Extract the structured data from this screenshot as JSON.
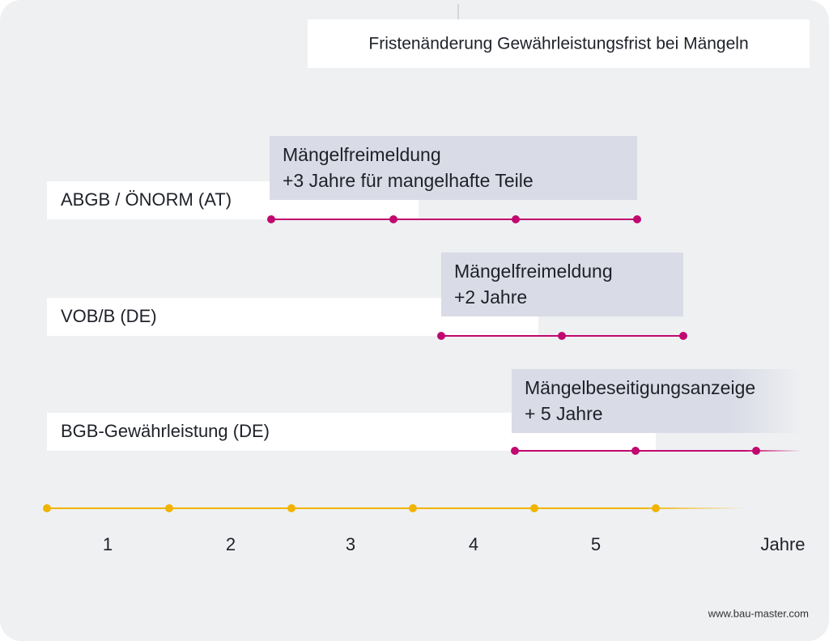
{
  "title": "Fristenänderung Gewährleistungsfrist bei Mängeln",
  "rows": [
    {
      "label": "ABGB / ÖNORM (AT)",
      "note": [
        "Mängelfreimeldung",
        "+3 Jahre für mangelhafte Teile"
      ]
    },
    {
      "label": "VOB/B (DE)",
      "note": [
        "Mängelfreimeldung",
        "+2 Jahre"
      ]
    },
    {
      "label": "BGB-Gewährleistung (DE)",
      "note": [
        "Mängelbeseitigungsanzeige",
        "+ 5 Jahre"
      ]
    }
  ],
  "axis": {
    "labels": [
      "1",
      "2",
      "3",
      "4",
      "5"
    ],
    "unit": "Jahre"
  },
  "footer": "www.bau-master.com"
}
